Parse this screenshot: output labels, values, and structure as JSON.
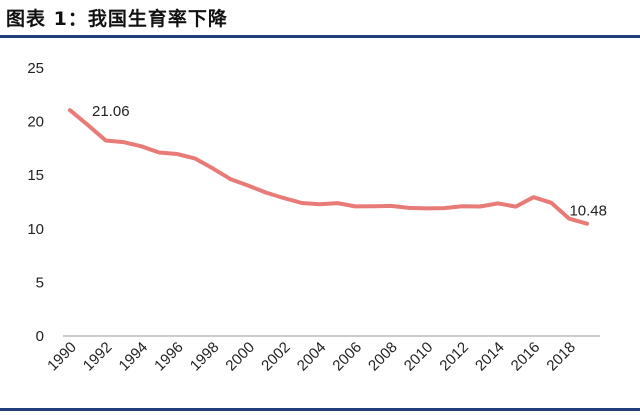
{
  "title": "图表 1：我国生育率下降",
  "chart_data": {
    "type": "line",
    "title": "图表 1：我国生育率下降",
    "xlabel": "",
    "ylabel": "",
    "ylim": [
      0,
      25
    ],
    "yticks": [
      "0",
      "5",
      "10",
      "15",
      "20",
      "25"
    ],
    "x": [
      1990,
      1991,
      1992,
      1993,
      1994,
      1995,
      1996,
      1997,
      1998,
      1999,
      2000,
      2001,
      2002,
      2003,
      2004,
      2005,
      2006,
      2007,
      2008,
      2009,
      2010,
      2011,
      2012,
      2013,
      2014,
      2015,
      2016,
      2017,
      2018,
      2019
    ],
    "xticks": [
      "1990",
      "1992",
      "1994",
      "1996",
      "1998",
      "2000",
      "2002",
      "2004",
      "2006",
      "2008",
      "2010",
      "2012",
      "2014",
      "2016",
      "2018"
    ],
    "grid": false,
    "legend": "none",
    "series": [
      {
        "color": "#e87a78",
        "values": [
          21.06,
          19.68,
          18.24,
          18.09,
          17.7,
          17.12,
          16.98,
          16.57,
          15.64,
          14.64,
          14.03,
          13.38,
          12.86,
          12.41,
          12.29,
          12.4,
          12.09,
          12.1,
          12.14,
          11.95,
          11.9,
          11.93,
          12.1,
          12.08,
          12.37,
          12.07,
          12.95,
          12.43,
          10.94,
          10.48
        ]
      }
    ],
    "annotations": [
      {
        "index": 0,
        "text": "21.06"
      },
      {
        "index": 29,
        "text": "10.48"
      }
    ]
  }
}
